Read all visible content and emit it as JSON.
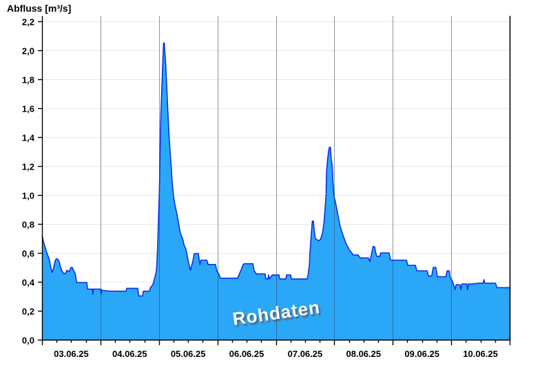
{
  "chart_data": {
    "type": "area",
    "title": "Abfluss [m³/s]",
    "watermark": "Rohdaten",
    "ylabel": "Abfluss [m³/s]",
    "xlabel": "",
    "ylim": [
      0,
      2.238
    ],
    "y_ticks": [
      0.0,
      0.2,
      0.4,
      0.6,
      0.8,
      1.0,
      1.2,
      1.4,
      1.6,
      1.8,
      2.0,
      2.2
    ],
    "y_tick_labels": [
      "0,0",
      "0,2",
      "0,4",
      "0,6",
      "0,8",
      "1,0",
      "1,2",
      "1,4",
      "1,6",
      "1,8",
      "2,0",
      "2,2"
    ],
    "x_total_hours": 192,
    "x_major_tick_hours": 24,
    "x_minor_tick_hours": 6,
    "x_tick_labels": [
      "03.06.25",
      "04.06.25",
      "05.06.25",
      "06.06.25",
      "07.06.25",
      "08.06.25",
      "09.06.25",
      "10.06.25"
    ],
    "grid": "on",
    "legend": "none",
    "colors": {
      "area_fill": "#2BA7F8",
      "line": "#0B2FE8",
      "h_grid": "#e7e7e7",
      "v_grid": "rgba(38,64,88,0.55)",
      "axis": "#000000"
    },
    "series": [
      {
        "name": "Abfluss Rohdaten",
        "unit": "m³/s",
        "points_hours_value": [
          [
            0,
            0.72
          ],
          [
            0.3,
            0.7
          ],
          [
            0.8,
            0.665
          ],
          [
            1.4,
            0.633
          ],
          [
            2.0,
            0.6
          ],
          [
            2.5,
            0.578
          ],
          [
            3.1,
            0.546
          ],
          [
            3.7,
            0.49
          ],
          [
            4.2,
            0.465
          ],
          [
            4.8,
            0.5
          ],
          [
            5.4,
            0.546
          ],
          [
            5.9,
            0.56
          ],
          [
            6.5,
            0.555
          ],
          [
            7.1,
            0.538
          ],
          [
            7.6,
            0.5
          ],
          [
            8.2,
            0.475
          ],
          [
            8.8,
            0.458
          ],
          [
            9.6,
            0.458
          ],
          [
            10.2,
            0.48
          ],
          [
            10.8,
            0.472
          ],
          [
            11.3,
            0.475
          ],
          [
            11.9,
            0.5
          ],
          [
            12.4,
            0.5
          ],
          [
            13.0,
            0.475
          ],
          [
            13.6,
            0.458
          ],
          [
            13.9,
            0.43
          ],
          [
            14.2,
            0.395
          ],
          [
            18.4,
            0.395
          ],
          [
            18.7,
            0.35
          ],
          [
            20.7,
            0.35
          ],
          [
            20.9,
            0.315
          ],
          [
            21.1,
            0.35
          ],
          [
            24.1,
            0.35
          ],
          [
            24.3,
            0.315
          ],
          [
            24.5,
            0.345
          ],
          [
            25.0,
            0.34
          ],
          [
            28.0,
            0.335
          ],
          [
            34.5,
            0.335
          ],
          [
            34.8,
            0.355
          ],
          [
            39.3,
            0.355
          ],
          [
            39.7,
            0.303
          ],
          [
            41.3,
            0.303
          ],
          [
            41.6,
            0.335
          ],
          [
            44.1,
            0.335
          ],
          [
            44.5,
            0.36
          ],
          [
            45.5,
            0.38
          ],
          [
            46.5,
            0.44
          ],
          [
            47.0,
            0.48
          ],
          [
            47.3,
            0.58
          ],
          [
            47.6,
            0.7
          ],
          [
            47.9,
            0.88
          ],
          [
            48.2,
            1.05
          ],
          [
            48.4,
            1.25
          ],
          [
            48.7,
            1.5
          ],
          [
            49.0,
            1.65
          ],
          [
            49.3,
            1.78
          ],
          [
            49.6,
            1.92
          ],
          [
            49.9,
            2.05
          ],
          [
            50.2,
            2.05
          ],
          [
            50.4,
            2.0
          ],
          [
            50.7,
            1.93
          ],
          [
            51.0,
            1.82
          ],
          [
            51.3,
            1.72
          ],
          [
            51.6,
            1.6
          ],
          [
            51.9,
            1.5
          ],
          [
            52.2,
            1.4
          ],
          [
            52.5,
            1.32
          ],
          [
            52.8,
            1.25
          ],
          [
            53.1,
            1.18
          ],
          [
            53.4,
            1.1
          ],
          [
            53.7,
            1.04
          ],
          [
            54.0,
            0.99
          ],
          [
            54.6,
            0.93
          ],
          [
            55.1,
            0.89
          ],
          [
            55.7,
            0.84
          ],
          [
            56.3,
            0.78
          ],
          [
            56.8,
            0.735
          ],
          [
            57.4,
            0.71
          ],
          [
            57.7,
            0.7
          ],
          [
            58.3,
            0.655
          ],
          [
            59.1,
            0.625
          ],
          [
            59.9,
            0.555
          ],
          [
            60.9,
            0.48
          ],
          [
            61.9,
            0.54
          ],
          [
            62.5,
            0.595
          ],
          [
            64.2,
            0.595
          ],
          [
            64.8,
            0.52
          ],
          [
            65.3,
            0.55
          ],
          [
            67.6,
            0.55
          ],
          [
            68.2,
            0.52
          ],
          [
            71.2,
            0.52
          ],
          [
            71.8,
            0.475
          ],
          [
            72.7,
            0.45
          ],
          [
            73.2,
            0.425
          ],
          [
            80.3,
            0.425
          ],
          [
            80.9,
            0.45
          ],
          [
            81.7,
            0.48
          ],
          [
            82.6,
            0.52
          ],
          [
            83.0,
            0.525
          ],
          [
            86.6,
            0.525
          ],
          [
            87.0,
            0.48
          ],
          [
            87.9,
            0.455
          ],
          [
            91.6,
            0.455
          ],
          [
            91.9,
            0.42
          ],
          [
            92.8,
            0.42
          ],
          [
            93.0,
            0.447
          ],
          [
            93.3,
            0.42
          ],
          [
            94.5,
            0.447
          ],
          [
            97.3,
            0.447
          ],
          [
            97.6,
            0.42
          ],
          [
            100.1,
            0.42
          ],
          [
            100.4,
            0.447
          ],
          [
            102.1,
            0.447
          ],
          [
            102.4,
            0.42
          ],
          [
            108.9,
            0.42
          ],
          [
            109.2,
            0.447
          ],
          [
            109.8,
            0.52
          ],
          [
            110.0,
            0.6
          ],
          [
            110.6,
            0.74
          ],
          [
            111.0,
            0.82
          ],
          [
            111.4,
            0.82
          ],
          [
            111.8,
            0.75
          ],
          [
            112.2,
            0.7
          ],
          [
            113.4,
            0.685
          ],
          [
            114.2,
            0.69
          ],
          [
            115.1,
            0.73
          ],
          [
            115.7,
            0.8
          ],
          [
            116.2,
            0.9
          ],
          [
            116.6,
            1.0
          ],
          [
            116.8,
            1.16
          ],
          [
            117.2,
            1.24
          ],
          [
            117.7,
            1.31
          ],
          [
            118.0,
            1.33
          ],
          [
            118.4,
            1.33
          ],
          [
            118.7,
            1.25
          ],
          [
            119.1,
            1.21
          ],
          [
            119.4,
            1.1
          ],
          [
            119.9,
            0.99
          ],
          [
            120.5,
            0.95
          ],
          [
            121.4,
            0.87
          ],
          [
            122.3,
            0.79
          ],
          [
            123.4,
            0.73
          ],
          [
            124.8,
            0.665
          ],
          [
            126.2,
            0.62
          ],
          [
            127.8,
            0.585
          ],
          [
            129.8,
            0.585
          ],
          [
            130.6,
            0.565
          ],
          [
            134.0,
            0.565
          ],
          [
            134.6,
            0.54
          ],
          [
            135.4,
            0.6
          ],
          [
            135.9,
            0.645
          ],
          [
            136.6,
            0.64
          ],
          [
            137.0,
            0.6
          ],
          [
            137.5,
            0.575
          ],
          [
            138.6,
            0.575
          ],
          [
            139.1,
            0.6
          ],
          [
            142.5,
            0.6
          ],
          [
            143.1,
            0.55
          ],
          [
            149.6,
            0.55
          ],
          [
            150.2,
            0.514
          ],
          [
            153.3,
            0.514
          ],
          [
            153.9,
            0.476
          ],
          [
            158.1,
            0.476
          ],
          [
            158.7,
            0.44
          ],
          [
            160.0,
            0.44
          ],
          [
            160.6,
            0.5
          ],
          [
            161.7,
            0.5
          ],
          [
            162.3,
            0.435
          ],
          [
            165.8,
            0.435
          ],
          [
            166.3,
            0.476
          ],
          [
            167.2,
            0.476
          ],
          [
            167.5,
            0.435
          ],
          [
            168.3,
            0.41
          ],
          [
            169.0,
            0.38
          ],
          [
            169.6,
            0.345
          ],
          [
            170.0,
            0.38
          ],
          [
            171.6,
            0.38
          ],
          [
            172.0,
            0.345
          ],
          [
            172.4,
            0.385
          ],
          [
            174.4,
            0.385
          ],
          [
            174.7,
            0.345
          ],
          [
            175.1,
            0.385
          ],
          [
            176.6,
            0.385
          ],
          [
            179.4,
            0.39
          ],
          [
            181.1,
            0.39
          ],
          [
            181.4,
            0.415
          ],
          [
            181.8,
            0.39
          ],
          [
            186.2,
            0.39
          ],
          [
            186.8,
            0.36
          ],
          [
            192,
            0.36
          ]
        ]
      }
    ]
  }
}
